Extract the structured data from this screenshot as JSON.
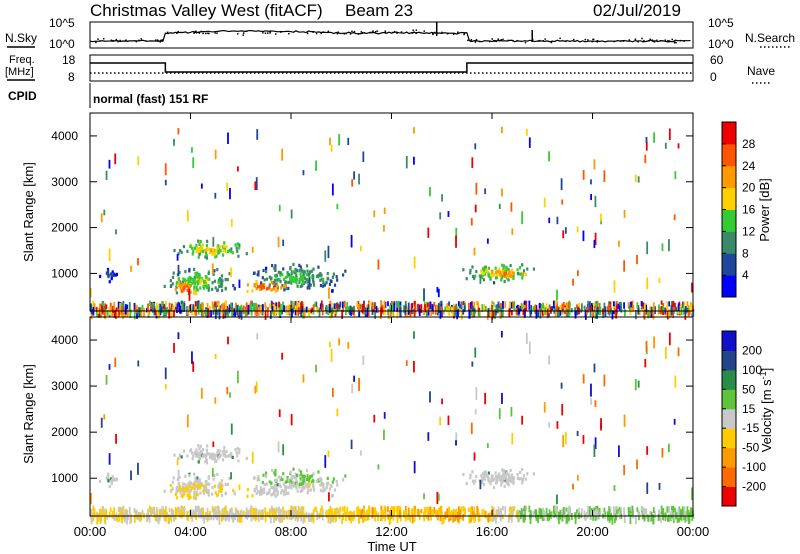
{
  "header": {
    "title": "Christmas Valley West (fitACF)",
    "beam": "Beam 23",
    "date": "02/Jul/2019"
  },
  "top_panels": {
    "nsky_label": "N.Sky",
    "nsearch_label": "N.Search",
    "noise_tick_high": "10^5",
    "noise_tick_low": "10^0",
    "freq_label_line1": "Freq.",
    "freq_label_line2": "[MHz]",
    "freq_tick_high": "18",
    "freq_tick_low": "8",
    "nave_tick_high": "60",
    "nave_tick_low": "0",
    "nave_label": "Nave",
    "cpid_label": "CPID",
    "cpid_text": "normal (fast) 151 RF"
  },
  "colors": {
    "power_scale": [
      "#0000ff",
      "#20489a",
      "#3a8a6a",
      "#33cc33",
      "#ffd000",
      "#ff9900",
      "#ff5500",
      "#ee0000"
    ],
    "velocity_scale": [
      "#ee0000",
      "#ff6a00",
      "#ff9900",
      "#ffcc00",
      "#c8c8c8",
      "#5ec53a",
      "#2b8c4a",
      "#224488",
      "#1010cc"
    ]
  },
  "chart_data": [
    {
      "type": "heatmap",
      "title": "Power",
      "ylabel": "Slant Range [km]",
      "yticks": [
        "1000",
        "2000",
        "3000",
        "4000"
      ],
      "ylim": [
        180,
        4500
      ],
      "colorbar": {
        "label": "Power [dB]",
        "ticks": [
          "4",
          "8",
          "12",
          "16",
          "20",
          "24",
          "28"
        ],
        "range": [
          0,
          30
        ]
      },
      "features": [
        {
          "time_h": [
            0.3,
            1.2
          ],
          "range_km": [
            800,
            1200
          ],
          "value": 8
        },
        {
          "time_h": [
            2.5,
            6.0
          ],
          "range_km": [
            500,
            1200
          ],
          "value": 16
        },
        {
          "time_h": [
            3.0,
            4.5
          ],
          "range_km": [
            500,
            900
          ],
          "value": 26
        },
        {
          "time_h": [
            3.0,
            6.5
          ],
          "range_km": [
            1300,
            1800
          ],
          "value": 18
        },
        {
          "time_h": [
            6.0,
            10.5
          ],
          "range_km": [
            600,
            1300
          ],
          "value": 14
        },
        {
          "time_h": [
            6.0,
            8.0
          ],
          "range_km": [
            600,
            900
          ],
          "value": 26
        },
        {
          "time_h": [
            14.5,
            18.0
          ],
          "range_km": [
            800,
            1300
          ],
          "value": 18
        },
        {
          "time_h": [
            15.5,
            17.5
          ],
          "range_km": [
            900,
            1150
          ],
          "value": 24
        }
      ]
    },
    {
      "type": "heatmap",
      "title": "Velocity",
      "ylabel": "Slant Range [km]",
      "yticks": [
        "1000",
        "2000",
        "3000",
        "4000"
      ],
      "ylim": [
        180,
        4500
      ],
      "colorbar": {
        "label": "Velocity [m s^-1]",
        "ticks": [
          "-200",
          "-100",
          "-50",
          "-15",
          "15",
          "50",
          "100",
          "200"
        ]
      },
      "xlabel": "Time UT",
      "xticks": [
        "00:00",
        "04:00",
        "08:00",
        "12:00",
        "16:00",
        "20:00",
        "00:00"
      ],
      "xlim": [
        0,
        24
      ]
    }
  ]
}
